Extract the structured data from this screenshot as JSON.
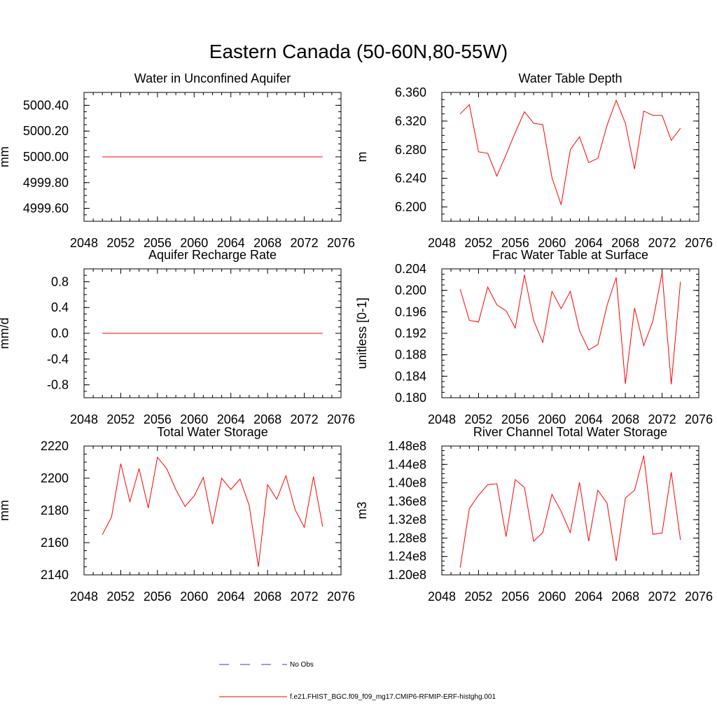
{
  "title": "Eastern Canada (50-60N,80-55W)",
  "legend": {
    "obs_label": "No Obs",
    "obs_color": "#3b3bbf",
    "model_label": "f.e21.FHIST_BGC.f09_f09_mg17.CMIP6-RFMIP-ERF-histghg.001",
    "model_color": "#ff0000"
  },
  "chart_data": [
    {
      "type": "line",
      "title": "Water in Unconfined Aquifer",
      "ylabel": "mm",
      "xlim": [
        2048,
        2076
      ],
      "ylim": [
        4999.5,
        5000.5
      ],
      "xticks": [
        "2048",
        "2052",
        "2056",
        "2060",
        "2064",
        "2068",
        "2072",
        "2076"
      ],
      "yticks": [
        "4999.60",
        "4999.80",
        "5000.00",
        "5000.20",
        "5000.40"
      ],
      "ytick_values": [
        4999.6,
        4999.8,
        5000.0,
        5000.2,
        5000.4
      ],
      "x": [
        2050,
        2051,
        2052,
        2053,
        2054,
        2055,
        2056,
        2057,
        2058,
        2059,
        2060,
        2061,
        2062,
        2063,
        2064,
        2065,
        2066,
        2067,
        2068,
        2069,
        2070,
        2071,
        2072,
        2073,
        2074
      ],
      "series": [
        {
          "values": [
            5000,
            5000,
            5000,
            5000,
            5000,
            5000,
            5000,
            5000,
            5000,
            5000,
            5000,
            5000,
            5000,
            5000,
            5000,
            5000,
            5000,
            5000,
            5000,
            5000,
            5000,
            5000,
            5000,
            5000,
            5000
          ]
        }
      ]
    },
    {
      "type": "line",
      "title": "Water Table Depth",
      "ylabel": "m",
      "xlim": [
        2048,
        2076
      ],
      "ylim": [
        6.18,
        6.36
      ],
      "xticks": [
        "2048",
        "2052",
        "2056",
        "2060",
        "2064",
        "2068",
        "2072",
        "2076"
      ],
      "yticks": [
        "6.200",
        "6.240",
        "6.280",
        "6.320",
        "6.360"
      ],
      "ytick_values": [
        6.2,
        6.24,
        6.28,
        6.32,
        6.36
      ],
      "x": [
        2050,
        2051,
        2052,
        2053,
        2054,
        2055,
        2056,
        2057,
        2058,
        2059,
        2060,
        2061,
        2062,
        2063,
        2064,
        2065,
        2066,
        2067,
        2068,
        2069,
        2070,
        2071,
        2072,
        2073,
        2074
      ],
      "series": [
        {
          "values": [
            6.33,
            6.343,
            6.277,
            6.275,
            6.243,
            6.273,
            6.304,
            6.333,
            6.317,
            6.315,
            6.241,
            6.203,
            6.28,
            6.298,
            6.262,
            6.268,
            6.314,
            6.349,
            6.317,
            6.253,
            6.334,
            6.328,
            6.328,
            6.293,
            6.31
          ]
        }
      ]
    },
    {
      "type": "line",
      "title": "Aquifer Recharge Rate",
      "ylabel": "mm/d",
      "xlim": [
        2048,
        2076
      ],
      "ylim": [
        -1.0,
        1.0
      ],
      "xticks": [
        "2048",
        "2052",
        "2056",
        "2060",
        "2064",
        "2068",
        "2072",
        "2076"
      ],
      "yticks": [
        "-0.8",
        "-0.4",
        "0.0",
        "0.4",
        "0.8"
      ],
      "ytick_values": [
        -0.8,
        -0.4,
        0.0,
        0.4,
        0.8
      ],
      "x": [
        2050,
        2051,
        2052,
        2053,
        2054,
        2055,
        2056,
        2057,
        2058,
        2059,
        2060,
        2061,
        2062,
        2063,
        2064,
        2065,
        2066,
        2067,
        2068,
        2069,
        2070,
        2071,
        2072,
        2073,
        2074
      ],
      "series": [
        {
          "values": [
            0,
            0,
            0,
            0,
            0,
            0,
            0,
            0,
            0,
            0,
            0,
            0,
            0,
            0,
            0,
            0,
            0,
            0,
            0,
            0,
            0,
            0,
            0,
            0,
            0
          ]
        }
      ]
    },
    {
      "type": "line",
      "title": "Frac Water Table at Surface",
      "ylabel": "unitless [0-1]",
      "xlim": [
        2048,
        2076
      ],
      "ylim": [
        0.18,
        0.204
      ],
      "xticks": [
        "2048",
        "2052",
        "2056",
        "2060",
        "2064",
        "2068",
        "2072",
        "2076"
      ],
      "yticks": [
        "0.180",
        "0.184",
        "0.188",
        "0.192",
        "0.196",
        "0.200",
        "0.204"
      ],
      "ytick_values": [
        0.18,
        0.184,
        0.188,
        0.192,
        0.196,
        0.2,
        0.204
      ],
      "x": [
        2050,
        2051,
        2052,
        2053,
        2054,
        2055,
        2056,
        2057,
        2058,
        2059,
        2060,
        2061,
        2062,
        2063,
        2064,
        2065,
        2066,
        2067,
        2068,
        2069,
        2070,
        2071,
        2072,
        2073,
        2074
      ],
      "series": [
        {
          "values": [
            0.2002,
            0.1944,
            0.1941,
            0.2006,
            0.1973,
            0.1962,
            0.193,
            0.2029,
            0.1944,
            0.1903,
            0.1998,
            0.1966,
            0.1998,
            0.1925,
            0.1889,
            0.1899,
            0.1972,
            0.2024,
            0.1826,
            0.1967,
            0.1897,
            0.1943,
            0.2033,
            0.1825,
            0.2016
          ]
        }
      ]
    },
    {
      "type": "line",
      "title": "Total Water Storage",
      "ylabel": "mm",
      "xlim": [
        2048,
        2076
      ],
      "ylim": [
        2140,
        2220
      ],
      "xticks": [
        "2048",
        "2052",
        "2056",
        "2060",
        "2064",
        "2068",
        "2072",
        "2076"
      ],
      "yticks": [
        "2140",
        "2160",
        "2180",
        "2200",
        "2220"
      ],
      "ytick_values": [
        2140,
        2160,
        2180,
        2200,
        2220
      ],
      "x": [
        2050,
        2051,
        2052,
        2053,
        2054,
        2055,
        2056,
        2057,
        2058,
        2059,
        2060,
        2061,
        2062,
        2063,
        2064,
        2065,
        2066,
        2067,
        2068,
        2069,
        2070,
        2071,
        2072,
        2073,
        2074
      ],
      "series": [
        {
          "values": [
            2165,
            2176,
            2209,
            2185.5,
            2206,
            2181.5,
            2213,
            2206,
            2193,
            2182.5,
            2189,
            2200.5,
            2171.5,
            2200,
            2193,
            2199.5,
            2183,
            2145,
            2196,
            2187,
            2201.5,
            2180.5,
            2169.5,
            2201,
            2170
          ]
        }
      ]
    },
    {
      "type": "line",
      "title": "River Channel Total Water Storage",
      "ylabel": "m3",
      "xlim": [
        2048,
        2076
      ],
      "ylim": [
        120000000.0,
        148000000.0
      ],
      "xticks": [
        "2048",
        "2052",
        "2056",
        "2060",
        "2064",
        "2068",
        "2072",
        "2076"
      ],
      "yticks": [
        "1.20e8",
        "1.24e8",
        "1.28e8",
        "1.32e8",
        "1.36e8",
        "1.40e8",
        "1.44e8",
        "1.48e8"
      ],
      "ytick_values": [
        120000000.0,
        124000000.0,
        128000000.0,
        132000000.0,
        136000000.0,
        140000000.0,
        144000000.0,
        148000000.0
      ],
      "x": [
        2050,
        2051,
        2052,
        2053,
        2054,
        2055,
        2056,
        2057,
        2058,
        2059,
        2060,
        2061,
        2062,
        2063,
        2064,
        2065,
        2066,
        2067,
        2068,
        2069,
        2070,
        2071,
        2072,
        2073,
        2074
      ],
      "series": [
        {
          "values": [
            121600000.0,
            134400000.0,
            137300000.0,
            139600000.0,
            139800000.0,
            128300000.0,
            140700000.0,
            139000000.0,
            127300000.0,
            129200000.0,
            137500000.0,
            133800000.0,
            129200000.0,
            140100000.0,
            127300000.0,
            138400000.0,
            135600000.0,
            123000000.0,
            136700000.0,
            138400000.0,
            145900000.0,
            128800000.0,
            129100000.0,
            142300000.0,
            127600000.0
          ]
        }
      ]
    }
  ]
}
